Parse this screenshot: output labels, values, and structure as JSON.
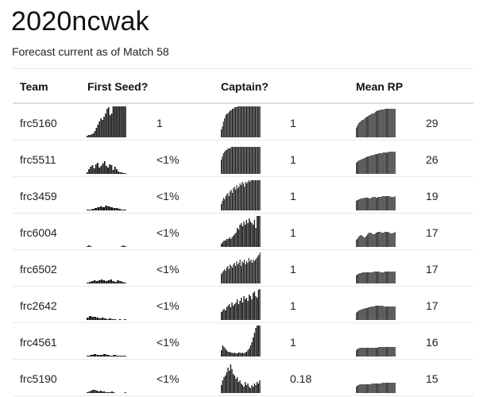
{
  "title": "2020ncwak",
  "subtitle": "Forecast current as of Match 58",
  "columns": [
    "Team",
    "First Seed?",
    "Captain?",
    "Mean RP"
  ],
  "rows": [
    {
      "team": "frc5160",
      "first_seed": "1",
      "captain": "1",
      "mean_rp": "29",
      "seed_hist": [
        2,
        3,
        3,
        4,
        5,
        8,
        12,
        16,
        20,
        24,
        22,
        26,
        30,
        36,
        38,
        28,
        30,
        40,
        42,
        44,
        44,
        44,
        44,
        44,
        44,
        44
      ],
      "cap_hist": [
        10,
        14,
        20,
        24,
        28,
        30,
        30,
        32,
        34,
        34,
        36,
        36,
        38,
        38,
        38,
        40,
        40,
        40,
        40,
        40,
        40,
        40,
        40,
        40,
        40,
        40,
        40,
        40,
        40,
        40,
        40,
        40,
        40,
        40,
        40,
        40
      ],
      "rp_hist": [
        12,
        14,
        16,
        18,
        19,
        20,
        21,
        22,
        22,
        23,
        24,
        25,
        26,
        26,
        27,
        28,
        28,
        29,
        30,
        30,
        30,
        31,
        32,
        33,
        33,
        34,
        34,
        34,
        35,
        35,
        35,
        35,
        35,
        36,
        36,
        36,
        36,
        36,
        36,
        36,
        36,
        36,
        36,
        36,
        36,
        36
      ]
    },
    {
      "team": "frc5511",
      "first_seed": "<1%",
      "captain": "1",
      "mean_rp": "26",
      "seed_hist": [
        2,
        6,
        9,
        11,
        7,
        12,
        14,
        8,
        10,
        13,
        16,
        10,
        8,
        12,
        11,
        5,
        9,
        6,
        3,
        2,
        2,
        1,
        1
      ],
      "cap_hist": [
        18,
        22,
        26,
        28,
        30,
        30,
        32,
        32,
        32,
        34,
        34,
        34,
        34,
        34,
        34,
        34,
        34,
        34,
        34,
        34,
        34,
        34,
        34,
        34,
        34,
        34,
        34,
        34,
        34,
        34,
        34,
        34,
        34,
        34,
        34,
        34
      ],
      "rp_hist": [
        14,
        15,
        16,
        17,
        17,
        18,
        18,
        19,
        19,
        20,
        20,
        21,
        21,
        22,
        22,
        22,
        23,
        23,
        23,
        24,
        24,
        24,
        25,
        25,
        25,
        25,
        26,
        26,
        26,
        26,
        26,
        27,
        27,
        27,
        27,
        27,
        27,
        27,
        28,
        28,
        28,
        28,
        28,
        28,
        28,
        28
      ]
    },
    {
      "team": "frc3459",
      "first_seed": "<1%",
      "captain": "1",
      "mean_rp": "19",
      "seed_hist": [
        1,
        1,
        2,
        3,
        4,
        5,
        4,
        6,
        5,
        4,
        3,
        3,
        2,
        1,
        1
      ],
      "cap_hist": [
        8,
        12,
        16,
        14,
        18,
        20,
        22,
        18,
        24,
        26,
        22,
        28,
        30,
        26,
        32,
        28,
        30,
        34,
        32,
        36,
        34,
        30,
        36,
        34,
        36,
        38,
        36,
        38,
        38,
        38,
        38,
        38,
        38,
        38,
        38,
        38
      ],
      "rp_hist": [
        12,
        13,
        13,
        14,
        14,
        15,
        15,
        15,
        15,
        16,
        16,
        16,
        16,
        16,
        16,
        15,
        15,
        16,
        16,
        17,
        17,
        17,
        17,
        16,
        16,
        17,
        17,
        17,
        17,
        17,
        18,
        18,
        18,
        18,
        18,
        18,
        18,
        18,
        18,
        18,
        17,
        17,
        17,
        17,
        17,
        18
      ]
    },
    {
      "team": "frc6004",
      "first_seed": "<1%",
      "captain": "1",
      "mean_rp": "17",
      "seed_hist": [
        1,
        2,
        1,
        0,
        0,
        0,
        0,
        0,
        0,
        0,
        0,
        0,
        0,
        0,
        0,
        0,
        0,
        0,
        0,
        0,
        1,
        2,
        1
      ],
      "cap_hist": [
        4,
        6,
        8,
        8,
        10,
        10,
        12,
        10,
        12,
        14,
        16,
        18,
        24,
        22,
        28,
        30,
        26,
        32,
        28,
        34,
        30,
        36,
        32,
        30,
        28,
        34,
        24,
        40,
        42,
        44
      ],
      "rp_hist": [
        9,
        10,
        11,
        13,
        14,
        15,
        15,
        14,
        13,
        12,
        12,
        13,
        14,
        16,
        17,
        18,
        18,
        18,
        17,
        16,
        16,
        16,
        17,
        18,
        18,
        19,
        19,
        19,
        19,
        18,
        18,
        18,
        18,
        19,
        19,
        19,
        19,
        19,
        18,
        18,
        17,
        17,
        17,
        18,
        18,
        19
      ]
    },
    {
      "team": "frc6502",
      "first_seed": "<1%",
      "captain": "1",
      "mean_rp": "17",
      "seed_hist": [
        1,
        2,
        3,
        4,
        3,
        4,
        5,
        4,
        3,
        4,
        5,
        3,
        2,
        4,
        3,
        2,
        1
      ],
      "cap_hist": [
        12,
        14,
        16,
        18,
        16,
        20,
        22,
        18,
        24,
        22,
        20,
        24,
        26,
        22,
        28,
        24,
        26,
        30,
        22,
        28,
        26,
        30,
        24,
        28,
        26,
        32,
        28,
        30,
        26,
        30,
        28,
        30,
        32,
        34,
        36,
        44
      ],
      "rp_hist": [
        10,
        11,
        12,
        12,
        13,
        13,
        13,
        14,
        14,
        14,
        14,
        14,
        14,
        14,
        14,
        14,
        14,
        14,
        14,
        14,
        15,
        15,
        15,
        15,
        15,
        15,
        15,
        15,
        14,
        14,
        14,
        14,
        14,
        15,
        15,
        15,
        15,
        15,
        15,
        15,
        15,
        15,
        15,
        15,
        15,
        15
      ]
    },
    {
      "team": "frc2642",
      "first_seed": "<1%",
      "captain": "1",
      "mean_rp": "17",
      "seed_hist": [
        3,
        5,
        4,
        4,
        3,
        2,
        3,
        2,
        1,
        2,
        1,
        1,
        0,
        1,
        0,
        1
      ],
      "cap_hist": [
        10,
        12,
        14,
        12,
        16,
        18,
        20,
        16,
        22,
        18,
        20,
        22,
        26,
        20,
        24,
        28,
        22,
        30,
        26,
        28,
        24,
        32,
        30,
        26,
        34,
        36,
        30,
        28,
        38,
        40
      ],
      "rp_hist": [
        9,
        10,
        11,
        12,
        12,
        13,
        13,
        14,
        14,
        14,
        15,
        15,
        15,
        15,
        16,
        16,
        16,
        17,
        17,
        17,
        17,
        17,
        18,
        18,
        18,
        18,
        18,
        18,
        18,
        18,
        18,
        18,
        17,
        17,
        17,
        17,
        17,
        17,
        17,
        17,
        17,
        17,
        17,
        17,
        17,
        17
      ]
    },
    {
      "team": "frc4561",
      "first_seed": "<1%",
      "captain": "1",
      "mean_rp": "16",
      "seed_hist": [
        1,
        2,
        3,
        2,
        2,
        3,
        2,
        1,
        2,
        1,
        1,
        1
      ],
      "cap_hist": [
        8,
        14,
        12,
        10,
        8,
        6,
        6,
        5,
        5,
        4,
        5,
        4,
        4,
        5,
        5,
        4,
        5,
        4,
        5,
        6,
        8,
        10,
        14,
        18,
        24,
        30,
        36,
        40,
        42,
        44
      ],
      "rp_hist": [
        8,
        9,
        10,
        10,
        11,
        11,
        11,
        11,
        11,
        11,
        11,
        11,
        11,
        11,
        11,
        11,
        11,
        11,
        11,
        11,
        11,
        11,
        11,
        11,
        11,
        11,
        12,
        12,
        12,
        12,
        12,
        12,
        12,
        12,
        12,
        12,
        12,
        12,
        12,
        12,
        12,
        12,
        12,
        12,
        12,
        12
      ]
    },
    {
      "team": "frc5190",
      "first_seed": "<1%",
      "captain": "0.18",
      "mean_rp": "15",
      "seed_hist": [
        1,
        2,
        3,
        4,
        4,
        3,
        2,
        3,
        2,
        2,
        1,
        1,
        1,
        2,
        1,
        0,
        0,
        0,
        0,
        0,
        1
      ],
      "cap_hist": [
        10,
        16,
        20,
        22,
        26,
        32,
        28,
        36,
        30,
        24,
        22,
        18,
        20,
        14,
        16,
        12,
        10,
        8,
        14,
        10,
        12,
        8,
        6,
        10,
        8,
        12,
        10,
        14,
        12,
        16
      ],
      "rp_hist": [
        8,
        9,
        10,
        10,
        11,
        11,
        11,
        11,
        11,
        11,
        11,
        11,
        11,
        11,
        11,
        11,
        11,
        11,
        12,
        12,
        12,
        12,
        12,
        12,
        12,
        12,
        12,
        12,
        12,
        12,
        13,
        13,
        13,
        13,
        13,
        13,
        13,
        13,
        13,
        13,
        13,
        13,
        13,
        13,
        13,
        13
      ]
    }
  ],
  "colors": {
    "bar": "#1a1a1a",
    "divider": "#e8e8e8"
  }
}
